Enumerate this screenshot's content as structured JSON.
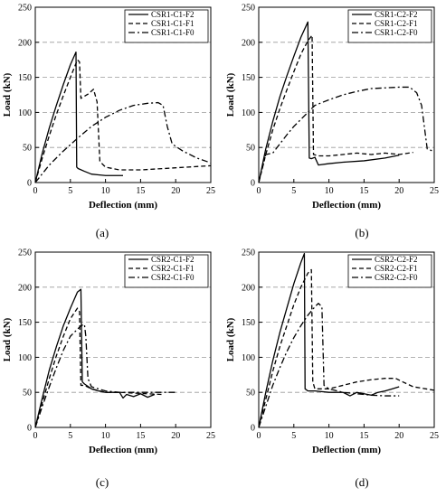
{
  "figure": {
    "panels": [
      {
        "caption": "(a)",
        "legend_position": "top-right",
        "chart": {
          "type": "line",
          "xlabel": "Deflection (mm)",
          "ylabel": "Load (kN)",
          "xlim": [
            0,
            25
          ],
          "ylim": [
            0,
            250
          ],
          "xticks": [
            "0",
            "5",
            "10",
            "15",
            "20",
            "25"
          ],
          "yticks": [
            "0",
            "50",
            "100",
            "150",
            "200",
            "250"
          ],
          "grid": "horizontal-dashed",
          "series": [
            {
              "name": "CSR1-C1-F2",
              "style": "solid",
              "x": [
                0,
                1,
                2,
                3,
                4,
                5,
                5.8,
                5.9,
                6.1,
                7,
                8,
                9,
                10,
                11,
                12.5
              ],
              "y": [
                0,
                42,
                78,
                110,
                140,
                168,
                186,
                22,
                20,
                16,
                12,
                11,
                10,
                10,
                10
              ]
            },
            {
              "name": "CSR1-C1-F1",
              "style": "dashed",
              "x": [
                0,
                1,
                2,
                3,
                4,
                5,
                6,
                6.3,
                6.5,
                7.5,
                8.3,
                8.8,
                9.2,
                10,
                12,
                15,
                20,
                25
              ],
              "y": [
                0,
                35,
                67,
                97,
                124,
                150,
                175,
                172,
                120,
                126,
                133,
                115,
                30,
                22,
                18,
                18,
                21,
                24
              ]
            },
            {
              "name": "CSR1-C1-F0",
              "style": "dashdot",
              "x": [
                0,
                2,
                4,
                6,
                8,
                10,
                12,
                14,
                16,
                17.5,
                18.2,
                18.8,
                19.5,
                21,
                23,
                25
              ],
              "y": [
                0,
                25,
                45,
                63,
                80,
                93,
                103,
                110,
                113,
                114,
                110,
                80,
                55,
                45,
                35,
                28
              ]
            }
          ]
        }
      },
      {
        "caption": "(b)",
        "legend_position": "top-right",
        "chart": {
          "type": "line",
          "xlabel": "Deflection (mm)",
          "ylabel": "Load (kN)",
          "xlim": [
            0,
            25
          ],
          "ylim": [
            0,
            250
          ],
          "xticks": [
            "0",
            "5",
            "10",
            "15",
            "20",
            "25"
          ],
          "yticks": [
            "0",
            "50",
            "100",
            "150",
            "200",
            "250"
          ],
          "grid": "horizontal-dashed",
          "series": [
            {
              "name": "CSR1-C2-F2",
              "style": "solid",
              "x": [
                0,
                1,
                2,
                3,
                4,
                5,
                6,
                7,
                7.2,
                7.5,
                8,
                8.5,
                10,
                12,
                15,
                18,
                20
              ],
              "y": [
                0,
                48,
                87,
                122,
                152,
                180,
                207,
                229,
                35,
                34,
                36,
                25,
                27,
                29,
                31,
                35,
                39
              ]
            },
            {
              "name": "CSR1-C2-F1",
              "style": "dashed",
              "x": [
                0,
                1,
                2,
                3,
                4,
                5,
                6,
                7,
                7.6,
                7.8,
                8.5,
                10,
                12,
                14,
                16,
                18,
                20,
                22
              ],
              "y": [
                0,
                40,
                75,
                105,
                132,
                158,
                183,
                202,
                210,
                40,
                38,
                38,
                40,
                42,
                40,
                42,
                40,
                43
              ]
            },
            {
              "name": "CSR1-C2-F0",
              "style": "dashdot",
              "x": [
                0,
                1,
                2,
                3,
                4,
                5,
                6,
                7,
                8,
                10,
                12,
                14,
                16,
                18,
                20,
                21.5,
                22.5,
                23.2,
                24,
                25
              ],
              "y": [
                0,
                40,
                42,
                55,
                68,
                80,
                90,
                100,
                110,
                118,
                125,
                130,
                134,
                135,
                136,
                136,
                128,
                110,
                48,
                44
              ]
            }
          ]
        }
      },
      {
        "caption": "(c)",
        "legend_position": "top-right",
        "chart": {
          "type": "line",
          "xlabel": "Deflection (mm)",
          "ylabel": "Load (kN)",
          "xlim": [
            0,
            25
          ],
          "ylim": [
            0,
            250
          ],
          "xticks": [
            "0",
            "5",
            "10",
            "15",
            "20",
            "25"
          ],
          "yticks": [
            "0",
            "50",
            "100",
            "150",
            "200",
            "250"
          ],
          "grid": "horizontal-dashed",
          "series": [
            {
              "name": "CSR2-C1-F2",
              "style": "solid",
              "x": [
                0,
                1,
                2,
                3,
                4,
                5,
                6,
                6.5,
                6.7,
                7,
                8,
                9,
                10,
                11,
                12,
                12.5,
                13,
                14,
                15,
                16,
                17
              ],
              "y": [
                0,
                42,
                82,
                115,
                145,
                170,
                193,
                197,
                65,
                62,
                55,
                52,
                50,
                50,
                50,
                42,
                47,
                44,
                48,
                43,
                47
              ]
            },
            {
              "name": "CSR2-C1-F1",
              "style": "dashed",
              "x": [
                0,
                1,
                2,
                3,
                4,
                5,
                6,
                6.3,
                6.5,
                7,
                8,
                10,
                12,
                14,
                16,
                18
              ],
              "y": [
                0,
                35,
                70,
                102,
                130,
                155,
                170,
                165,
                60,
                60,
                55,
                50,
                50,
                49,
                48,
                47
              ]
            },
            {
              "name": "CSR2-C1-F0",
              "style": "dashdot",
              "x": [
                0,
                1,
                2,
                3,
                4,
                5,
                6,
                6.5,
                7,
                7.2,
                7.5,
                8,
                10,
                12,
                14,
                16,
                18,
                20
              ],
              "y": [
                0,
                30,
                58,
                85,
                110,
                130,
                140,
                145,
                147,
                130,
                70,
                58,
                52,
                50,
                50,
                50,
                50,
                50
              ]
            }
          ]
        }
      },
      {
        "caption": "(d)",
        "legend_position": "top-right",
        "chart": {
          "type": "line",
          "xlabel": "Deflection (mm)",
          "ylabel": "Load (kN)",
          "xlim": [
            0,
            25
          ],
          "ylim": [
            0,
            250
          ],
          "xticks": [
            "0",
            "5",
            "10",
            "15",
            "20",
            "25"
          ],
          "yticks": [
            "0",
            "50",
            "100",
            "150",
            "200",
            "250"
          ],
          "grid": "horizontal-dashed",
          "series": [
            {
              "name": "CSR2-C2-F2",
              "style": "solid",
              "x": [
                0,
                1,
                2,
                3,
                4,
                5,
                6,
                6.5,
                6.6,
                7,
                8,
                10,
                12,
                13,
                14,
                15,
                16,
                17,
                18,
                19,
                20
              ],
              "y": [
                0,
                50,
                95,
                135,
                170,
                205,
                235,
                248,
                55,
                52,
                52,
                50,
                50,
                45,
                50,
                48,
                46,
                50,
                52,
                55,
                58
              ]
            },
            {
              "name": "CSR2-C2-F1",
              "style": "dashed",
              "x": [
                0,
                1,
                2,
                3,
                4,
                5,
                6,
                7,
                7.5,
                7.7,
                8,
                10,
                12,
                14,
                16,
                18,
                19.5,
                20.5,
                22,
                25
              ],
              "y": [
                0,
                40,
                80,
                115,
                145,
                175,
                200,
                220,
                225,
                65,
                55,
                55,
                60,
                65,
                68,
                70,
                70,
                65,
                58,
                53
              ]
            },
            {
              "name": "CSR2-C2-F0",
              "style": "dashdot",
              "x": [
                0,
                1,
                2,
                3,
                4,
                5,
                6,
                7,
                8,
                8.5,
                9,
                9.3,
                10,
                12,
                14,
                16,
                18,
                20
              ],
              "y": [
                0,
                30,
                60,
                85,
                108,
                128,
                145,
                160,
                172,
                177,
                172,
                60,
                55,
                50,
                48,
                46,
                45,
                45
              ]
            }
          ]
        }
      }
    ]
  }
}
